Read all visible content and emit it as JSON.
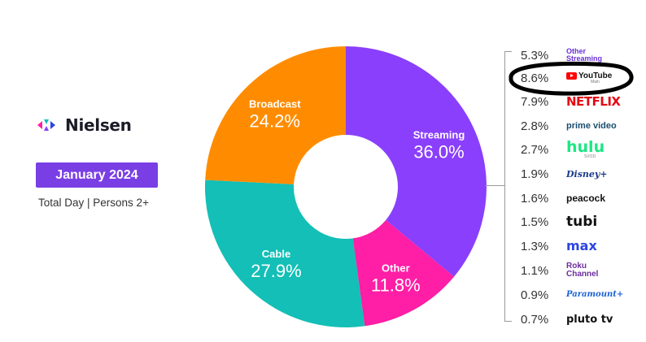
{
  "header": {
    "brand": "Nielsen",
    "date": "January 2024",
    "subtitle": "Total Day | Persons 2+"
  },
  "colors": {
    "streaming": "#8a3ffc",
    "other": "#ff1ea6",
    "cable": "#13bfb6",
    "broadcast": "#ff8c00",
    "badge": "#7a3fe4"
  },
  "icons": [
    "nielsen-logo-icon",
    "youtube-play-icon"
  ],
  "chart_data": {
    "type": "pie",
    "donut": true,
    "slices": [
      {
        "label": "Streaming",
        "value": 36.0,
        "value_label": "36.0%",
        "color": "#8a3ffc"
      },
      {
        "label": "Other",
        "value": 11.8,
        "value_label": "11.8%",
        "color": "#ff1ea6"
      },
      {
        "label": "Cable",
        "value": 27.9,
        "value_label": "27.9%",
        "color": "#13bfb6"
      },
      {
        "label": "Broadcast",
        "value": 24.2,
        "value_label": "24.2%",
        "color": "#ff8c00"
      }
    ],
    "streaming_breakdown": [
      {
        "service": "Other Streaming",
        "value": 5.3,
        "label": "5.3%"
      },
      {
        "service": "YouTube",
        "sub": "Main",
        "value": 8.6,
        "label": "8.6%"
      },
      {
        "service": "NETFLIX",
        "value": 7.9,
        "label": "7.9%"
      },
      {
        "service": "prime video",
        "value": 2.8,
        "label": "2.8%"
      },
      {
        "service": "hulu",
        "sub": "SVOD",
        "value": 2.7,
        "label": "2.7%"
      },
      {
        "service": "Disney+",
        "value": 1.9,
        "label": "1.9%"
      },
      {
        "service": "peacock",
        "value": 1.6,
        "label": "1.6%"
      },
      {
        "service": "tubi",
        "value": 1.5,
        "label": "1.5%"
      },
      {
        "service": "max",
        "value": 1.3,
        "label": "1.3%"
      },
      {
        "service": "Roku Channel",
        "value": 1.1,
        "label": "1.1%"
      },
      {
        "service": "Paramount+",
        "value": 0.9,
        "label": "0.9%"
      },
      {
        "service": "pluto tv",
        "value": 0.7,
        "label": "0.7%"
      }
    ]
  }
}
